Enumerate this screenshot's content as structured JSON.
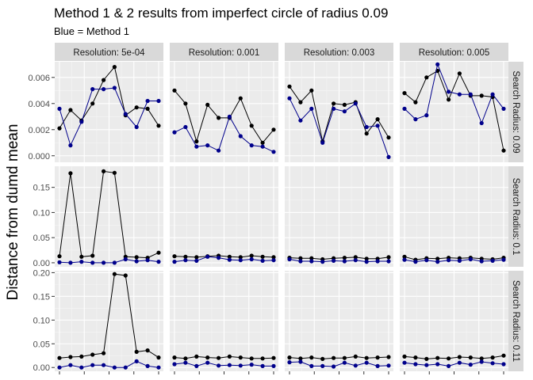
{
  "chart_data": {
    "type": "line",
    "title": "Method 1 & 2 results from imperfect circle of radius 0.09",
    "subtitle": "Blue = Method 1",
    "ylabel": "Distance from dumd mean",
    "xlabel": "",
    "grid": true,
    "col_facets": [
      "Resolution: 5e-04",
      "Resolution: 0.001",
      "Resolution: 0.003",
      "Resolution: 0.005"
    ],
    "row_facets": [
      {
        "label": "Search Radius: 0.09",
        "ylim": [
          -0.0005,
          0.0072
        ],
        "ticks": [
          0.0,
          0.002,
          0.004,
          0.006
        ],
        "tick_labels": [
          "0.000",
          "0.002",
          "0.004",
          "0.006"
        ]
      },
      {
        "label": "Search Radius: 0.1",
        "ylim": [
          -0.008,
          0.192
        ],
        "ticks": [
          0.0,
          0.05,
          0.1,
          0.15
        ],
        "tick_labels": [
          "0.00",
          "0.05",
          "0.10",
          "0.15"
        ]
      },
      {
        "label": "Search Radius: 0.11",
        "ylim": [
          -0.008,
          0.204
        ],
        "ticks": [
          0.0,
          0.05,
          0.1,
          0.15,
          0.2
        ],
        "tick_labels": [
          "0.00",
          "0.05",
          "0.10",
          "0.15",
          "0.20"
        ]
      }
    ],
    "colors": {
      "black_series": "#000000",
      "blue_series": "#00008b"
    },
    "panels": [
      [
        {
          "black": [
            0.0021,
            0.0035,
            0.0027,
            0.004,
            0.0058,
            0.0068,
            0.0031,
            0.0037,
            0.0036,
            0.0023
          ],
          "blue": [
            0.0036,
            0.0008,
            0.0026,
            0.0051,
            0.0051,
            0.0052,
            0.0032,
            0.0022,
            0.0042,
            0.0042
          ]
        },
        {
          "black": [
            0.005,
            0.004,
            0.0011,
            0.0039,
            0.0029,
            0.0029,
            0.0044,
            0.0023,
            0.001,
            0.002
          ],
          "blue": [
            0.0018,
            0.0022,
            0.0007,
            0.0008,
            0.0004,
            0.003,
            0.0015,
            0.0008,
            0.0007,
            0.0003
          ]
        },
        {
          "black": [
            0.0053,
            0.0041,
            0.005,
            0.0011,
            0.004,
            0.0039,
            0.0041,
            0.0017,
            0.0028,
            0.0014
          ],
          "blue": [
            0.0044,
            0.0027,
            0.0036,
            0.001,
            0.0036,
            0.0034,
            0.004,
            0.0022,
            0.0023,
            -0.0001
          ]
        },
        {
          "black": [
            0.0048,
            0.0041,
            0.006,
            0.0065,
            0.0043,
            0.0063,
            0.0046,
            0.0046,
            0.0045,
            0.0004
          ],
          "blue": [
            0.0036,
            0.0028,
            0.0031,
            0.007,
            0.0049,
            0.0047,
            0.0047,
            0.0025,
            0.0047,
            0.0036
          ]
        }
      ],
      [
        {
          "black": [
            0.013,
            0.178,
            0.012,
            0.014,
            0.182,
            0.179,
            0.012,
            0.011,
            0.01,
            0.02
          ],
          "blue": [
            0.001,
            0.0,
            0.002,
            0.0,
            0.0,
            0.0,
            0.007,
            0.003,
            0.005,
            0.002
          ]
        },
        {
          "black": [
            0.013,
            0.012,
            0.011,
            0.013,
            0.014,
            0.012,
            0.011,
            0.014,
            0.012,
            0.011
          ],
          "blue": [
            0.002,
            0.005,
            0.004,
            0.012,
            0.01,
            0.006,
            0.005,
            0.007,
            0.004,
            0.005
          ]
        },
        {
          "black": [
            0.01,
            0.009,
            0.009,
            0.007,
            0.009,
            0.01,
            0.011,
            0.008,
            0.008,
            0.011
          ],
          "blue": [
            0.007,
            0.003,
            0.003,
            0.002,
            0.004,
            0.003,
            0.005,
            0.002,
            0.003,
            0.003
          ]
        },
        {
          "black": [
            0.012,
            0.006,
            0.009,
            0.008,
            0.01,
            0.009,
            0.01,
            0.008,
            0.007,
            0.01
          ],
          "blue": [
            0.006,
            0.002,
            0.005,
            0.002,
            0.005,
            0.004,
            0.007,
            0.003,
            0.004,
            0.006
          ]
        }
      ],
      [
        {
          "black": [
            0.02,
            0.022,
            0.023,
            0.027,
            0.03,
            0.197,
            0.194,
            0.033,
            0.036,
            0.021
          ],
          "blue": [
            0.0,
            0.005,
            0.0,
            0.005,
            0.005,
            0.0,
            0.0,
            0.013,
            0.003,
            0.0
          ]
        },
        {
          "black": [
            0.021,
            0.019,
            0.023,
            0.021,
            0.02,
            0.023,
            0.021,
            0.019,
            0.019,
            0.02
          ],
          "blue": [
            0.007,
            0.01,
            0.003,
            0.01,
            0.004,
            0.005,
            0.004,
            0.006,
            0.003,
            0.003
          ]
        },
        {
          "black": [
            0.021,
            0.019,
            0.021,
            0.018,
            0.02,
            0.02,
            0.023,
            0.02,
            0.021,
            0.022
          ],
          "blue": [
            0.011,
            0.012,
            0.003,
            0.003,
            0.002,
            0.01,
            0.004,
            0.01,
            0.003,
            0.004
          ]
        },
        {
          "black": [
            0.023,
            0.021,
            0.018,
            0.02,
            0.019,
            0.022,
            0.021,
            0.019,
            0.021,
            0.025
          ],
          "blue": [
            0.01,
            0.007,
            0.005,
            0.007,
            0.003,
            0.01,
            0.006,
            0.012,
            0.009,
            0.007
          ]
        }
      ]
    ]
  }
}
